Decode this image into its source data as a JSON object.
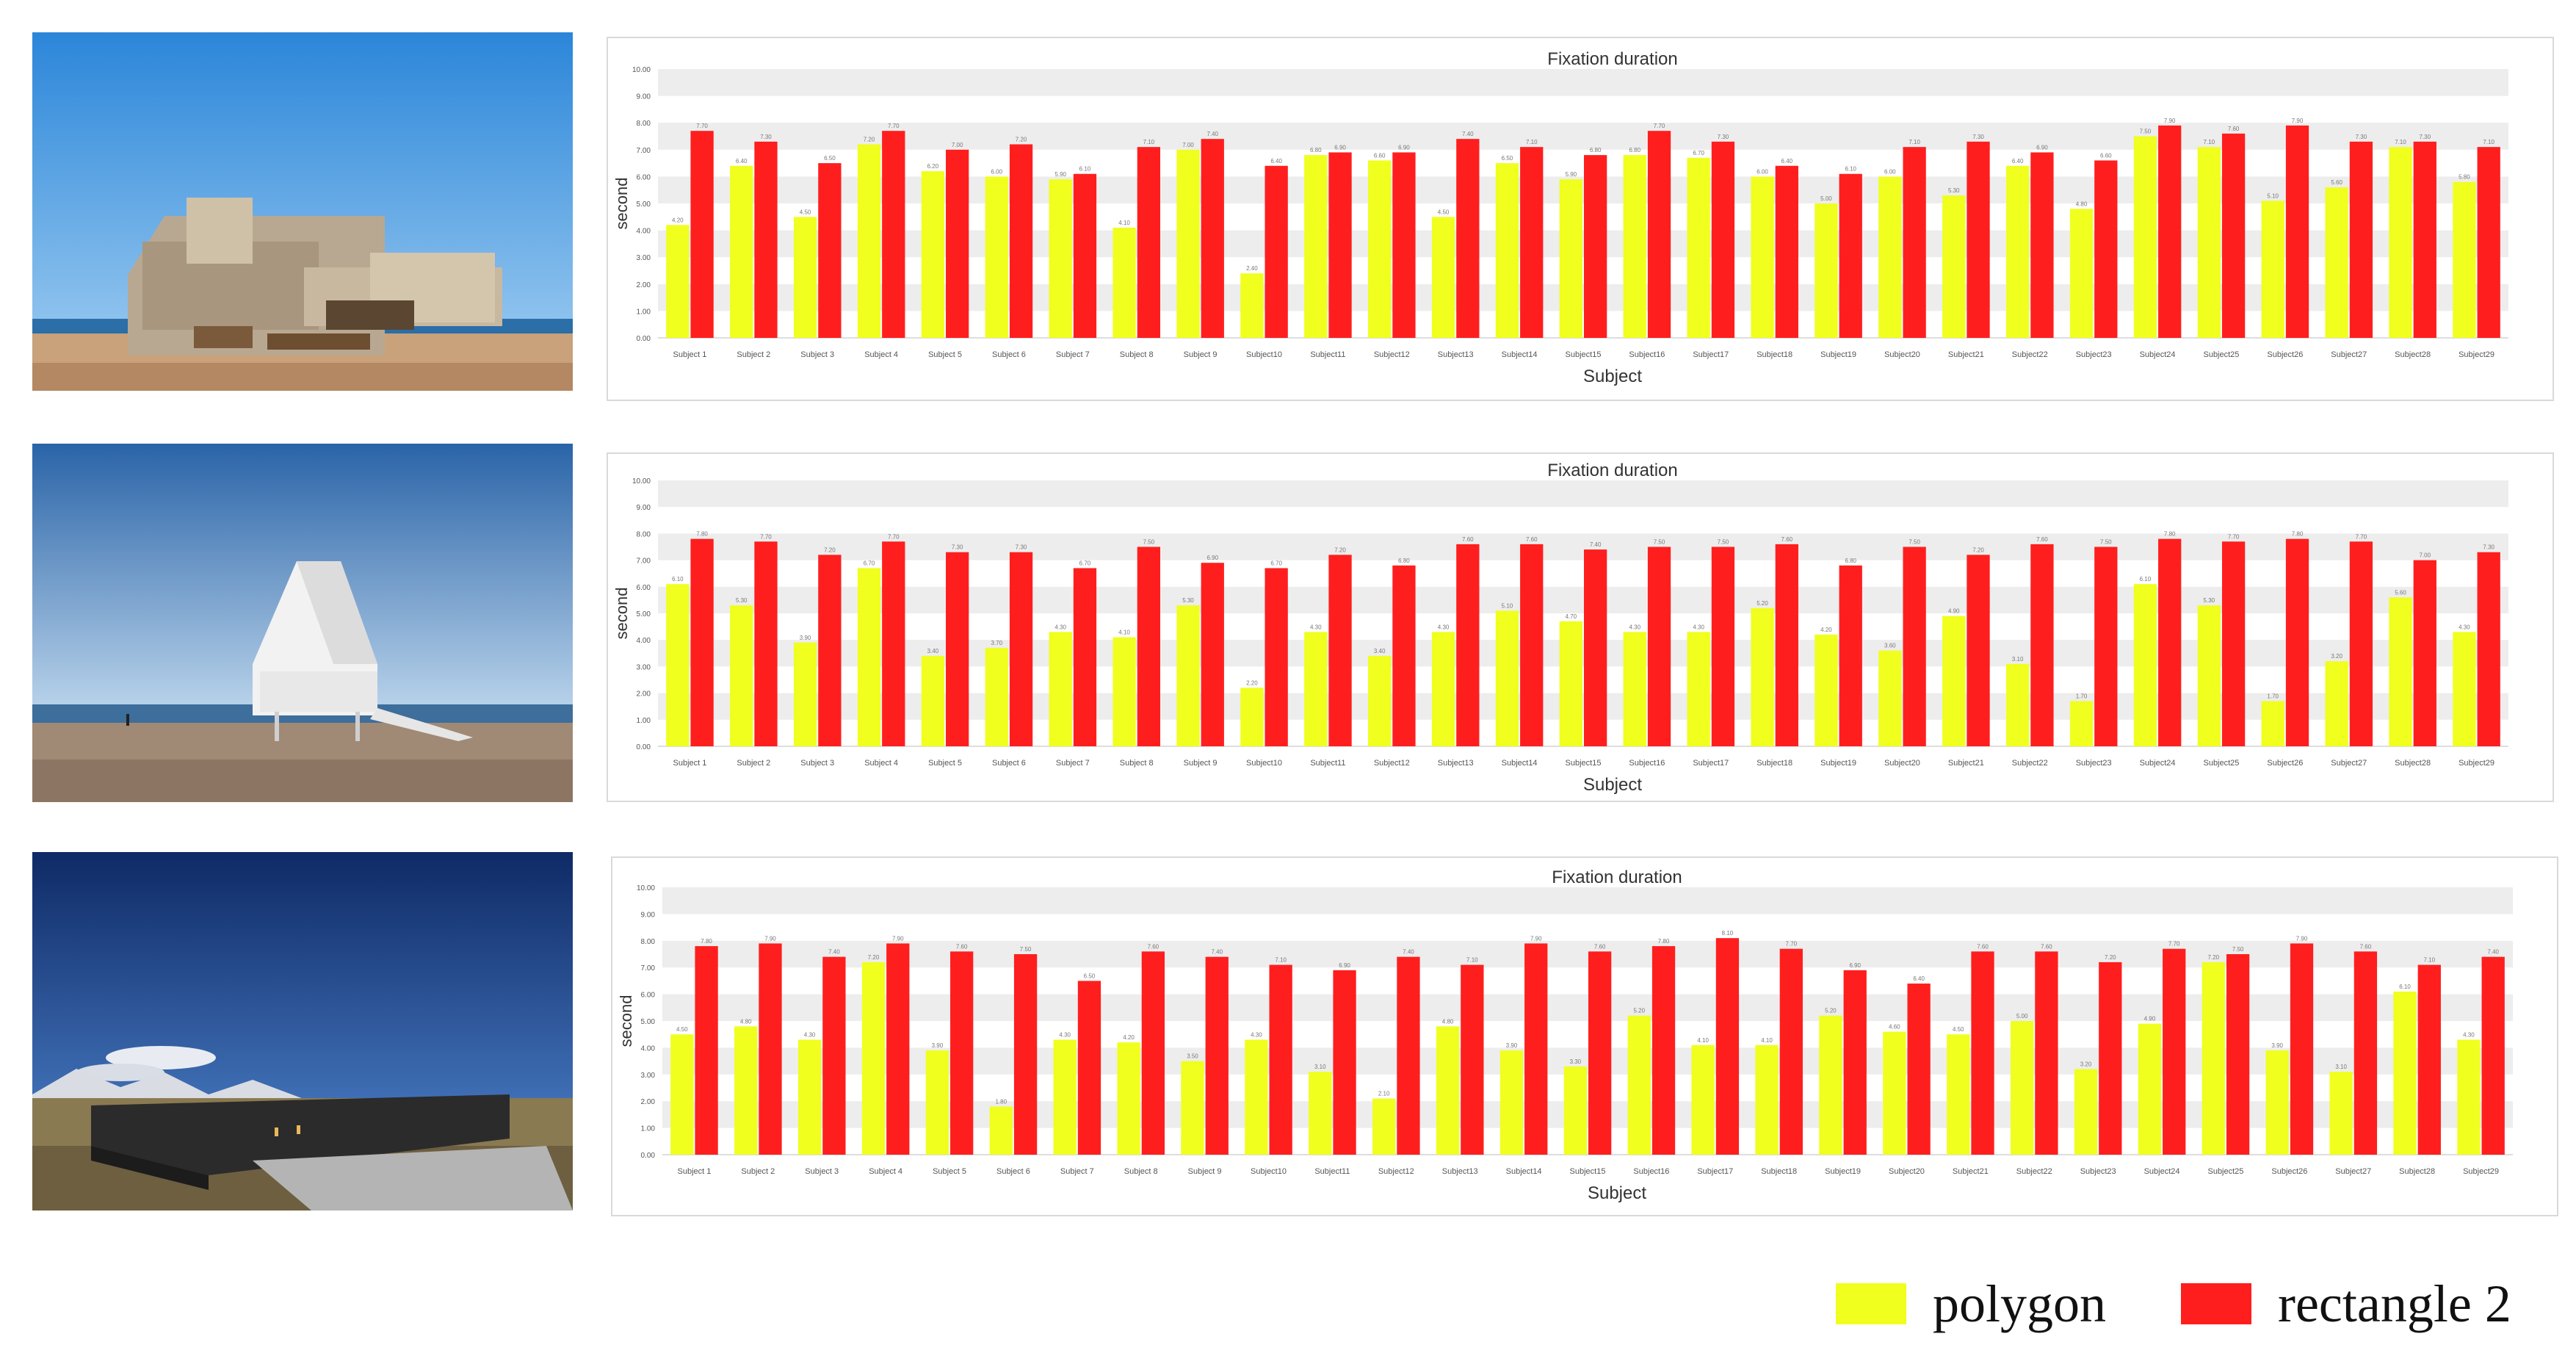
{
  "colors": {
    "polygon": "#f0ff1e",
    "rectangle": "#ff1e1e",
    "band": "#ededed",
    "label": "#555555"
  },
  "photos": [
    {
      "name": "photo-seashore-concrete-building"
    },
    {
      "name": "photo-beach-white-chapel"
    },
    {
      "name": "photo-tibet-dark-building"
    }
  ],
  "legend": [
    {
      "label": "polygon",
      "color": "#f0ff1e"
    },
    {
      "label": "rectangle 2",
      "color": "#ff1e1e"
    }
  ],
  "chart_data": [
    {
      "type": "bar",
      "title": "Fixation duration",
      "xlabel": "Subject",
      "ylabel": "second",
      "ylim": [
        0,
        10
      ],
      "yticks": [
        "0.00",
        "1.00",
        "2.00",
        "3.00",
        "4.00",
        "5.00",
        "6.00",
        "7.00",
        "8.00",
        "9.00",
        "10.00"
      ],
      "categories": [
        "Subject 1",
        "Subject 2",
        "Subject 3",
        "Subject 4",
        "Subject 5",
        "Subject 6",
        "Subject 7",
        "Subject 8",
        "Subject 9",
        "Subject10",
        "Subject11",
        "Subject12",
        "Subject13",
        "Subject14",
        "Subject15",
        "Subject16",
        "Subject17",
        "Subject18",
        "Subject19",
        "Subject20",
        "Subject21",
        "Subject22",
        "Subject23",
        "Subject24",
        "Subject25",
        "Subject26",
        "Subject27",
        "Subject28",
        "Subject29"
      ],
      "series": [
        {
          "name": "polygon",
          "values": [
            4.2,
            6.4,
            4.5,
            7.2,
            6.2,
            6.0,
            5.9,
            4.1,
            7.0,
            2.4,
            6.8,
            6.6,
            4.5,
            6.5,
            5.9,
            6.8,
            6.7,
            6.0,
            5.0,
            6.0,
            5.3,
            6.4,
            4.8,
            7.5,
            7.1,
            5.1,
            5.6,
            7.1,
            5.8
          ]
        },
        {
          "name": "rectangle 2",
          "values": [
            7.7,
            7.3,
            6.5,
            7.7,
            7.0,
            7.2,
            6.1,
            7.1,
            7.4,
            6.4,
            6.9,
            6.9,
            7.4,
            7.1,
            6.8,
            7.7,
            7.3,
            6.4,
            6.1,
            7.1,
            7.3,
            6.9,
            6.6,
            7.9,
            7.6,
            7.9,
            7.3,
            7.3,
            7.1
          ]
        }
      ]
    },
    {
      "type": "bar",
      "title": "Fixation duration",
      "xlabel": "Subject",
      "ylabel": "second",
      "ylim": [
        0,
        10
      ],
      "yticks": [
        "0.00",
        "1.00",
        "2.00",
        "3.00",
        "4.00",
        "5.00",
        "6.00",
        "7.00",
        "8.00",
        "9.00",
        "10.00"
      ],
      "categories": [
        "Subject 1",
        "Subject 2",
        "Subject 3",
        "Subject 4",
        "Subject 5",
        "Subject 6",
        "Subject 7",
        "Subject 8",
        "Subject 9",
        "Subject10",
        "Subject11",
        "Subject12",
        "Subject13",
        "Subject14",
        "Subject15",
        "Subject16",
        "Subject17",
        "Subject18",
        "Subject19",
        "Subject20",
        "Subject21",
        "Subject22",
        "Subject23",
        "Subject24",
        "Subject25",
        "Subject26",
        "Subject27",
        "Subject28",
        "Subject29"
      ],
      "series": [
        {
          "name": "polygon",
          "values": [
            6.1,
            5.3,
            3.9,
            6.7,
            3.4,
            3.7,
            4.3,
            4.1,
            5.3,
            2.2,
            4.3,
            3.4,
            4.3,
            5.1,
            4.7,
            4.3,
            4.3,
            5.2,
            4.2,
            3.6,
            4.9,
            3.1,
            1.7,
            6.1,
            5.3,
            1.7,
            3.2,
            5.6,
            4.3
          ]
        },
        {
          "name": "rectangle 2",
          "values": [
            7.8,
            7.7,
            7.2,
            7.7,
            7.3,
            7.3,
            6.7,
            7.5,
            6.9,
            6.7,
            7.2,
            6.8,
            7.6,
            7.6,
            7.4,
            7.5,
            7.5,
            7.6,
            6.8,
            7.5,
            7.2,
            7.6,
            7.5,
            7.8,
            7.7,
            7.8,
            7.7,
            7.0,
            7.3
          ]
        }
      ]
    },
    {
      "type": "bar",
      "title": "Fixation duration",
      "xlabel": "Subject",
      "ylabel": "second",
      "ylim": [
        0,
        10
      ],
      "yticks": [
        "0.00",
        "1.00",
        "2.00",
        "3.00",
        "4.00",
        "5.00",
        "6.00",
        "7.00",
        "8.00",
        "9.00",
        "10.00"
      ],
      "categories": [
        "Subject 1",
        "Subject 2",
        "Subject 3",
        "Subject 4",
        "Subject 5",
        "Subject 6",
        "Subject 7",
        "Subject 8",
        "Subject 9",
        "Subject10",
        "Subject11",
        "Subject12",
        "Subject13",
        "Subject14",
        "Subject15",
        "Subject16",
        "Subject17",
        "Subject18",
        "Subject19",
        "Subject20",
        "Subject21",
        "Subject22",
        "Subject23",
        "Subject24",
        "Subject25",
        "Subject26",
        "Subject27",
        "Subject28",
        "Subject29"
      ],
      "series": [
        {
          "name": "polygon",
          "values": [
            4.5,
            4.8,
            4.3,
            7.2,
            3.9,
            1.8,
            4.3,
            4.2,
            3.5,
            4.3,
            3.1,
            2.1,
            4.8,
            3.9,
            3.3,
            5.2,
            4.1,
            4.1,
            5.2,
            4.6,
            4.5,
            5.0,
            3.2,
            4.9,
            7.2,
            3.9,
            3.1,
            6.1,
            4.3
          ]
        },
        {
          "name": "rectangle 2",
          "values": [
            7.8,
            7.9,
            7.4,
            7.9,
            7.6,
            7.5,
            6.5,
            7.6,
            7.4,
            7.1,
            6.9,
            7.4,
            7.1,
            7.9,
            7.6,
            7.8,
            8.1,
            7.7,
            6.9,
            6.4,
            7.6,
            7.6,
            7.2,
            7.7,
            7.5,
            7.9,
            7.6,
            7.1,
            7.4
          ]
        }
      ]
    }
  ]
}
